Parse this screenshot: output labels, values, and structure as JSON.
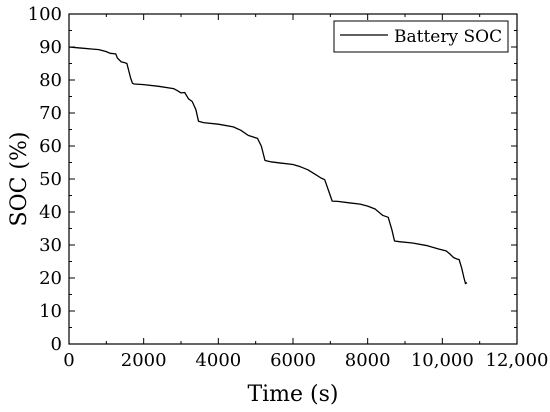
{
  "chart_data": {
    "type": "line",
    "xlabel": "Time (s)",
    "ylabel": "SOC (%)",
    "xlim": [
      0,
      12000
    ],
    "ylim": [
      0,
      100
    ],
    "x_ticks": [
      0,
      2000,
      4000,
      6000,
      8000,
      10000,
      12000
    ],
    "x_tick_labels": [
      "0",
      "2000",
      "4000",
      "6000",
      "8000",
      "10,000",
      "12,000"
    ],
    "y_ticks": [
      0,
      10,
      20,
      30,
      40,
      50,
      60,
      70,
      80,
      90,
      100
    ],
    "y_tick_labels": [
      "0",
      "10",
      "20",
      "30",
      "40",
      "50",
      "60",
      "70",
      "80",
      "90",
      "100"
    ],
    "grid": false,
    "legend": {
      "position": "top-right",
      "frame": true
    },
    "series": [
      {
        "name": "Battery SOC",
        "color": "#000000",
        "points": [
          [
            0,
            90.0
          ],
          [
            200,
            89.8
          ],
          [
            400,
            89.6
          ],
          [
            600,
            89.4
          ],
          [
            800,
            89.2
          ],
          [
            1000,
            88.6
          ],
          [
            1100,
            88.1
          ],
          [
            1250,
            87.9
          ],
          [
            1300,
            86.6
          ],
          [
            1400,
            85.5
          ],
          [
            1500,
            85.2
          ],
          [
            1550,
            85.0
          ],
          [
            1650,
            80.6
          ],
          [
            1700,
            79.0
          ],
          [
            1750,
            78.8
          ],
          [
            2000,
            78.6
          ],
          [
            2400,
            78.1
          ],
          [
            2800,
            77.4
          ],
          [
            2900,
            76.8
          ],
          [
            3000,
            76.1
          ],
          [
            3100,
            76.2
          ],
          [
            3200,
            74.3
          ],
          [
            3300,
            73.5
          ],
          [
            3400,
            71.0
          ],
          [
            3470,
            67.5
          ],
          [
            3600,
            67.1
          ],
          [
            4000,
            66.6
          ],
          [
            4400,
            65.8
          ],
          [
            4600,
            64.8
          ],
          [
            4800,
            63.2
          ],
          [
            5050,
            62.3
          ],
          [
            5150,
            60.0
          ],
          [
            5250,
            55.6
          ],
          [
            5400,
            55.2
          ],
          [
            5700,
            54.8
          ],
          [
            6000,
            54.4
          ],
          [
            6200,
            53.7
          ],
          [
            6400,
            52.8
          ],
          [
            6600,
            51.4
          ],
          [
            6750,
            50.3
          ],
          [
            6850,
            49.8
          ],
          [
            6950,
            46.5
          ],
          [
            7050,
            43.3
          ],
          [
            7200,
            43.2
          ],
          [
            7500,
            42.8
          ],
          [
            7800,
            42.4
          ],
          [
            8000,
            41.8
          ],
          [
            8200,
            40.9
          ],
          [
            8400,
            39.0
          ],
          [
            8550,
            38.4
          ],
          [
            8650,
            34.6
          ],
          [
            8720,
            31.2
          ],
          [
            8850,
            31.0
          ],
          [
            9200,
            30.6
          ],
          [
            9600,
            29.8
          ],
          [
            9900,
            28.8
          ],
          [
            10100,
            28.2
          ],
          [
            10200,
            27.3
          ],
          [
            10300,
            26.2
          ],
          [
            10400,
            25.7
          ],
          [
            10450,
            25.6
          ],
          [
            10520,
            23.0
          ],
          [
            10580,
            20.0
          ],
          [
            10620,
            18.3
          ],
          [
            10660,
            18.6
          ]
        ]
      }
    ]
  }
}
